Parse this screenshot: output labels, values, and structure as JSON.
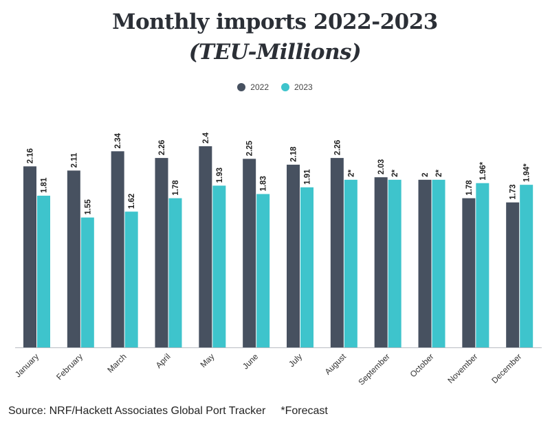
{
  "title_line1": "Monthly imports 2022-2023",
  "title_line2": "(TEU-Millions)",
  "legend": [
    {
      "name": "2022",
      "color": "#475160"
    },
    {
      "name": "2023",
      "color": "#3ec4cc"
    }
  ],
  "chart_data": {
    "type": "bar",
    "title": "Monthly imports 2022-2023 (TEU-Millions)",
    "xlabel": "",
    "ylabel": "",
    "ylim": [
      0,
      2.4
    ],
    "categories": [
      "January",
      "February",
      "March",
      "April",
      "May",
      "June",
      "July",
      "August",
      "September",
      "October",
      "November",
      "December"
    ],
    "series": [
      {
        "name": "2022",
        "color": "#475160",
        "values": [
          2.16,
          2.11,
          2.34,
          2.26,
          2.4,
          2.25,
          2.18,
          2.26,
          2.03,
          2,
          1.78,
          1.73
        ],
        "labels": [
          "2.16",
          "2.11",
          "2.34",
          "2.26",
          "2.4",
          "2.25",
          "2.18",
          "2.26",
          "2.03",
          "2",
          "1.78",
          "1.73"
        ]
      },
      {
        "name": "2023",
        "color": "#3ec4cc",
        "values": [
          1.81,
          1.55,
          1.62,
          1.78,
          1.93,
          1.83,
          1.91,
          2,
          2,
          2,
          1.96,
          1.94
        ],
        "labels": [
          "1.81",
          "1.55",
          "1.62",
          "1.78",
          "1.93",
          "1.83",
          "1.91",
          "2*",
          "2*",
          "2*",
          "1.96*",
          "1.94*"
        ]
      }
    ]
  },
  "footer": {
    "source": "Source: NRF/Hackett Associates Global Port Tracker",
    "note": "*Forecast"
  }
}
